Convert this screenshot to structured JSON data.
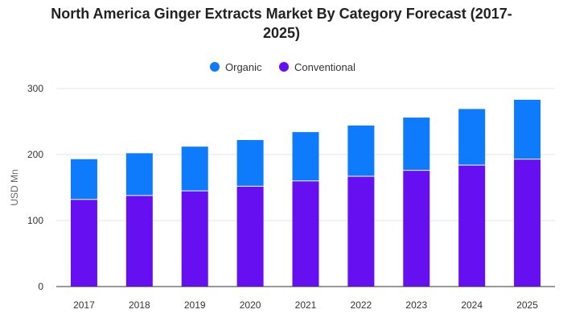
{
  "chart_data": {
    "type": "bar",
    "stacked": true,
    "title": "North America Ginger Extracts Market By Category Forecast (2017-2025)",
    "title_lines": [
      "North America Ginger Extracts Market By Category Forecast (2017-",
      "2025)"
    ],
    "xlabel": "",
    "ylabel": "USD Mn",
    "ylim": [
      0,
      300
    ],
    "yticks": [
      "0",
      "100",
      "200",
      "300"
    ],
    "ytick_values": [
      0,
      100,
      200,
      300
    ],
    "grid": true,
    "legend_position": "top-center",
    "categories": [
      "2017",
      "2018",
      "2019",
      "2020",
      "2021",
      "2022",
      "2023",
      "2024",
      "2025"
    ],
    "series": [
      {
        "name": "Conventional",
        "color": "#6610f2",
        "values": [
          132,
          138,
          145,
          152,
          160,
          167,
          176,
          184,
          193
        ]
      },
      {
        "name": "Organic",
        "color": "#0d7bfb",
        "values": [
          61,
          64,
          67,
          70,
          74,
          77,
          80,
          85,
          90
        ]
      }
    ],
    "legend_order": [
      "Organic",
      "Conventional"
    ]
  }
}
